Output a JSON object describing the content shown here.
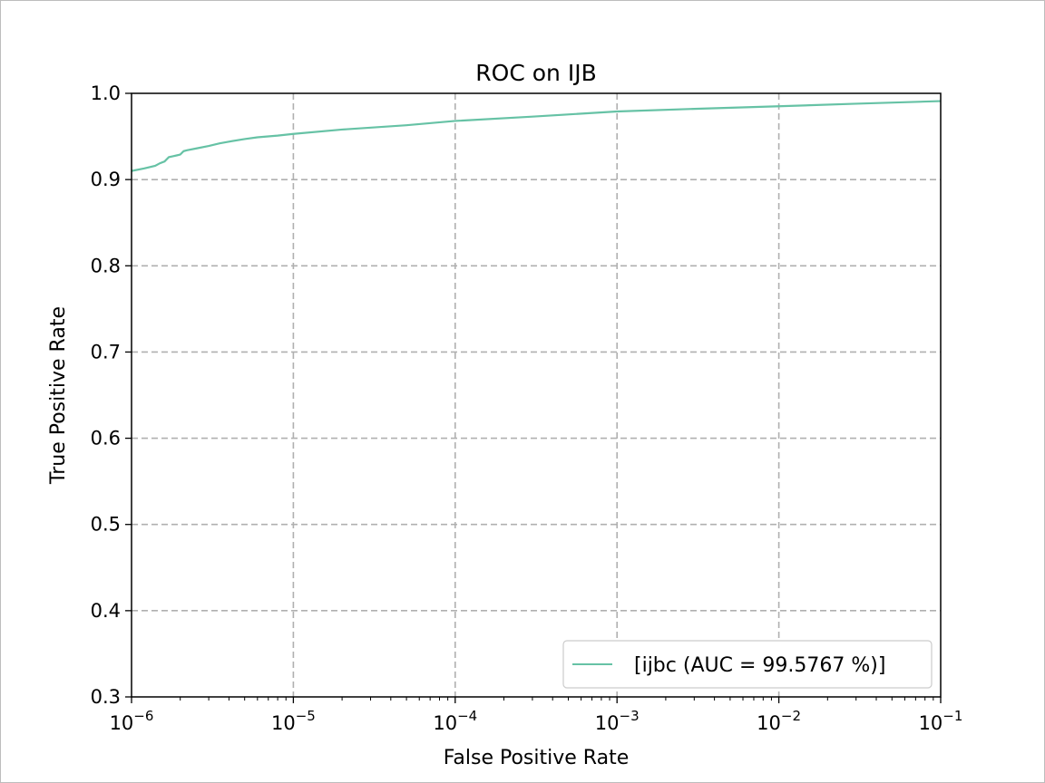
{
  "chart_data": {
    "type": "line",
    "title": "ROC on IJB",
    "xlabel": "False Positive Rate",
    "ylabel": "True Positive Rate",
    "xscale": "log",
    "xlim": [
      1e-06,
      0.1
    ],
    "ylim": [
      0.3,
      1.0
    ],
    "x_ticks": [
      {
        "base": "10",
        "exp": "−6",
        "value": 1e-06
      },
      {
        "base": "10",
        "exp": "−5",
        "value": 1e-05
      },
      {
        "base": "10",
        "exp": "−4",
        "value": 0.0001
      },
      {
        "base": "10",
        "exp": "−3",
        "value": 0.001
      },
      {
        "base": "10",
        "exp": "−2",
        "value": 0.01
      },
      {
        "base": "10",
        "exp": "−1",
        "value": 0.1
      }
    ],
    "y_ticks": [
      "0.3",
      "0.4",
      "0.5",
      "0.6",
      "0.7",
      "0.8",
      "0.9",
      "1.0"
    ],
    "grid": true,
    "legend_position": "lower-right",
    "series": [
      {
        "name": "[ijbc (AUC = 99.5767 %)]",
        "color": "#66c2a5",
        "x": [
          1e-06,
          1.2e-06,
          1.4e-06,
          1.5e-06,
          1.6e-06,
          1.7e-06,
          1.8e-06,
          1.9e-06,
          2e-06,
          2.1e-06,
          2.2e-06,
          2.5e-06,
          3e-06,
          3.5e-06,
          4e-06,
          5e-06,
          6e-06,
          8e-06,
          1e-05,
          2e-05,
          5e-05,
          0.0001,
          0.0003,
          0.001,
          0.003,
          0.01,
          0.03,
          0.1
        ],
        "y": [
          0.91,
          0.913,
          0.916,
          0.919,
          0.921,
          0.926,
          0.927,
          0.928,
          0.929,
          0.933,
          0.934,
          0.936,
          0.939,
          0.942,
          0.944,
          0.947,
          0.949,
          0.951,
          0.953,
          0.958,
          0.963,
          0.968,
          0.973,
          0.979,
          0.982,
          0.985,
          0.988,
          0.991
        ]
      }
    ]
  },
  "colors": {
    "grid": "#b0b0b0",
    "axes": "#000000",
    "legend_border": "#cccccc"
  }
}
